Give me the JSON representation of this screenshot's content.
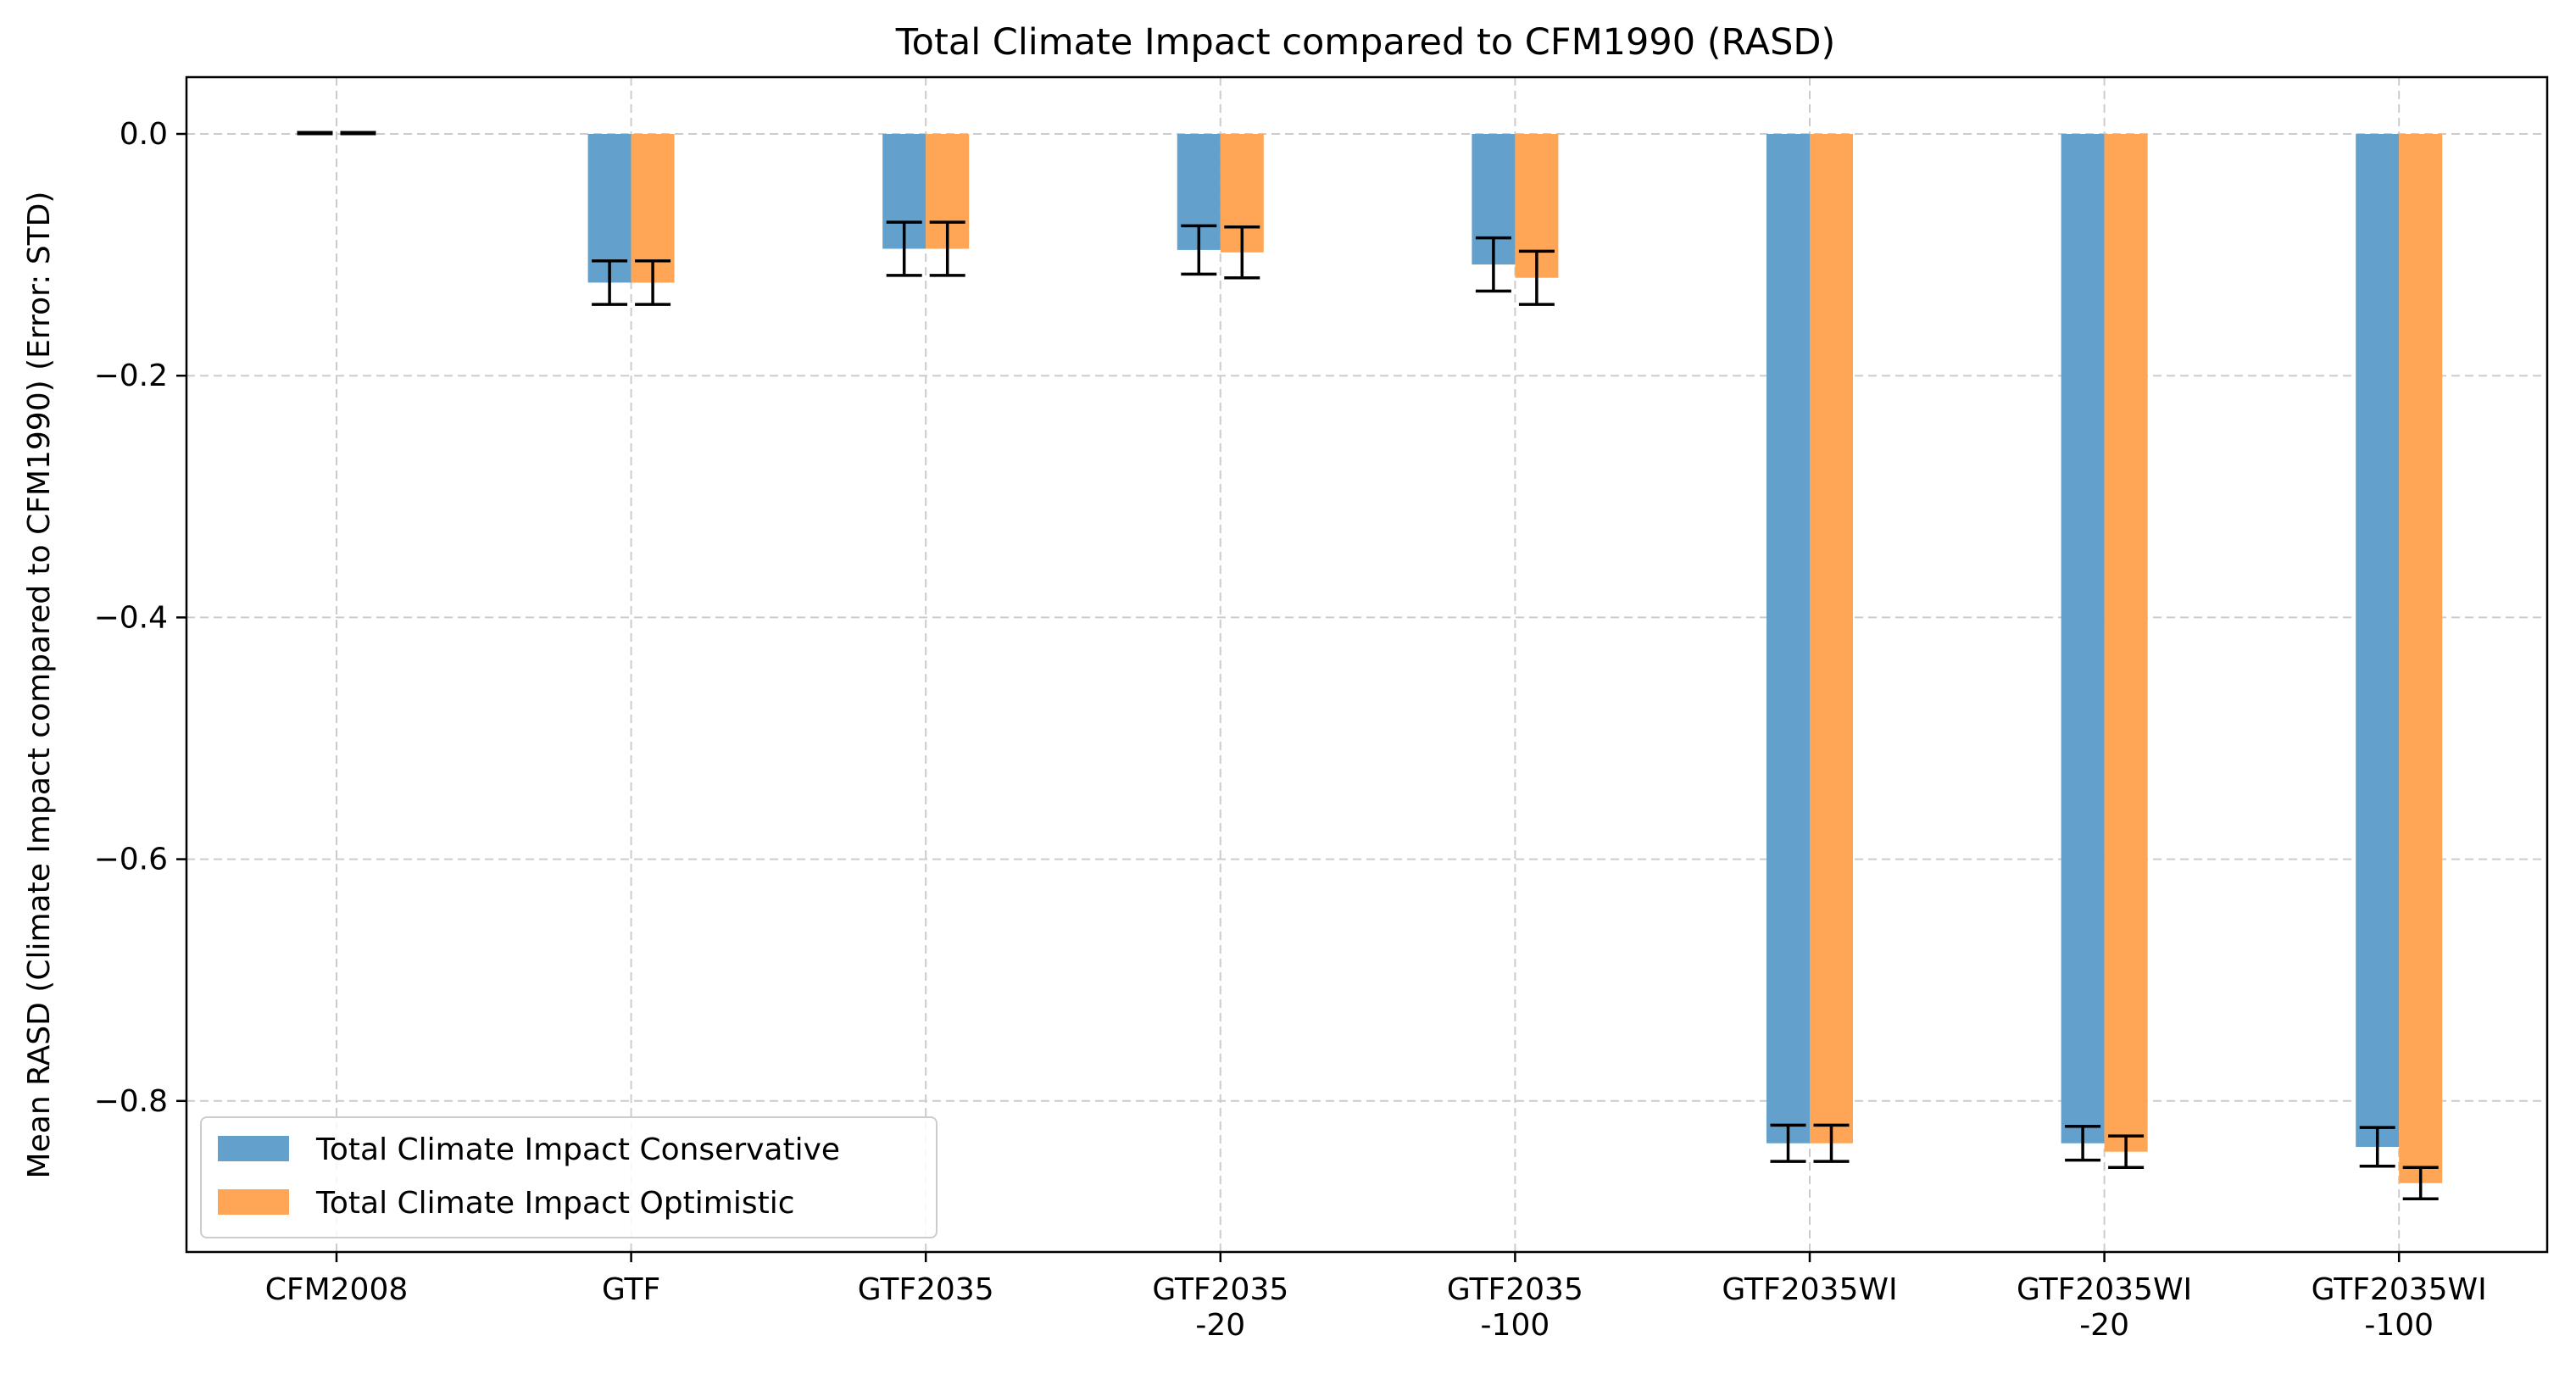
{
  "chart_data": {
    "type": "bar",
    "title": "Total Climate Impact compared to CFM1990 (RASD)",
    "xlabel": "",
    "ylabel": "Mean RASD (Climate Impact compared to CFM1990) (Error: STD)",
    "ylim": [
      -0.92,
      0.047
    ],
    "yticks": [
      0.0,
      -0.2,
      -0.4,
      -0.6,
      -0.8
    ],
    "ytick_labels": [
      "0.0",
      "−0.2",
      "−0.4",
      "−0.6",
      "−0.8"
    ],
    "grid": true,
    "legend_position": "lower-left",
    "categories": [
      [
        "CFM2008"
      ],
      [
        "GTF"
      ],
      [
        "GTF2035"
      ],
      [
        "GTF2035",
        "-20"
      ],
      [
        "GTF2035",
        "-100"
      ],
      [
        "GTF2035WI"
      ],
      [
        "GTF2035WI",
        "-20"
      ],
      [
        "GTF2035WI",
        "-100"
      ]
    ],
    "series": [
      {
        "name": "Total Climate Impact Conservative",
        "color": "#63a0cb",
        "values": [
          0.0,
          -0.123,
          -0.095,
          -0.096,
          -0.108,
          -0.835,
          -0.835,
          -0.838
        ],
        "errors": [
          0.0,
          0.018,
          0.022,
          0.02,
          0.022,
          0.015,
          0.014,
          0.016
        ]
      },
      {
        "name": "Total Climate Impact Optimistic",
        "color": "#ffa656",
        "values": [
          0.0,
          -0.123,
          -0.095,
          -0.098,
          -0.119,
          -0.835,
          -0.842,
          -0.868
        ],
        "errors": [
          0.0,
          0.018,
          0.022,
          0.021,
          0.022,
          0.015,
          0.013,
          0.013
        ]
      }
    ]
  }
}
